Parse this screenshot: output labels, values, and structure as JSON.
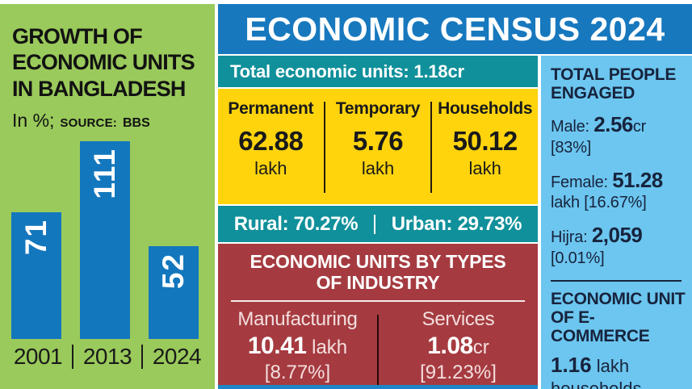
{
  "left_panel": {
    "title_lines": [
      "GROWTH OF",
      "ECONOMIC UNITS",
      "IN BANGLADESH"
    ],
    "subtitle_prefix": "In %;",
    "source_label": "SOURCE:",
    "source_value": "BBS"
  },
  "chart_data": {
    "type": "bar",
    "title": "Growth of economic units in Bangladesh",
    "ylabel": "Growth in %",
    "source": "BBS",
    "categories": [
      "2001",
      "2013",
      "2024"
    ],
    "values": [
      71,
      111,
      52
    ],
    "bar_labels": [
      "71",
      "111",
      "52"
    ],
    "ylim": [
      0,
      111
    ],
    "grid": false,
    "legend": "none",
    "bar_color": "#1377bd",
    "value_label_color": "#ffffff"
  },
  "header": {
    "title": "ECONOMIC CENSUS 2024"
  },
  "middle": {
    "total_units": "Total economic units: 1.18cr",
    "unit_types": [
      {
        "label": "Permanent",
        "value": "62.88",
        "unit": "lakh"
      },
      {
        "label": "Temporary",
        "value": "5.76",
        "unit": "lakh"
      },
      {
        "label": "Households",
        "value": "50.12",
        "unit": "lakh"
      }
    ],
    "rural": "Rural: 70.27%",
    "urban": "Urban: 29.73%",
    "industry": {
      "title_line1": "ECONOMIC UNITS BY TYPES",
      "title_line2": "OF INDUSTRY",
      "columns": [
        {
          "label": "Manufacturing",
          "value": "10.41",
          "unit": " lakh",
          "share": "[8.77%]"
        },
        {
          "label": "Services",
          "value": "1.08",
          "unit": "cr",
          "share": "[91.23%]"
        }
      ]
    }
  },
  "right_panel": {
    "engaged_title_line1": "TOTAL PEOPLE",
    "engaged_title_line2": "ENGAGED",
    "people": [
      {
        "label": "Male: ",
        "value": "2.56",
        "unit": "cr",
        "share": "[83%]"
      },
      {
        "label": "Female: ",
        "value": "51.28",
        "unit": " lakh",
        "share": "[16.67%]"
      },
      {
        "label": "Hijra: ",
        "value": "2,059",
        "unit": "",
        "share": "[0.01%]"
      }
    ],
    "ecommerce_title_line1": "ECONOMIC UNIT",
    "ecommerce_title_line2": "OF E-COMMERCE",
    "ecommerce_value": "1.16",
    "ecommerce_unit": " lakh",
    "ecommerce_suffix": "households"
  },
  "colors": {
    "left_panel_green": "#9aca5b",
    "header_blue": "#1778be",
    "bar_blue": "#1377bd",
    "teal_band": "#10909a",
    "yellow_band": "#ffd40d",
    "red_band": "#a53b40",
    "right_panel_cyan": "#6cc6ef",
    "navy_text": "#17233d",
    "bottom_strip_blue": "#1e86c8"
  }
}
